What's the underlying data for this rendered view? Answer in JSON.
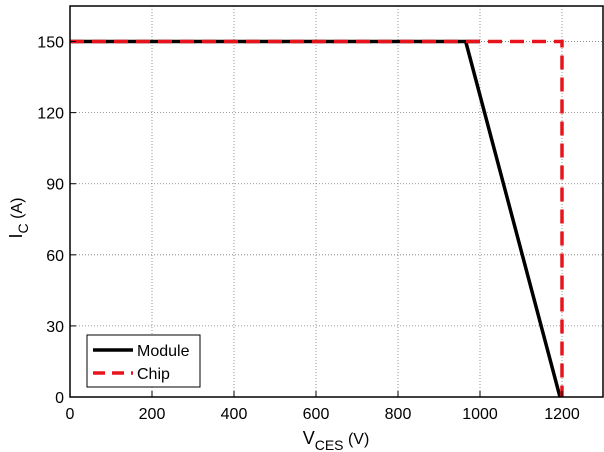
{
  "chart_data": {
    "type": "line",
    "title": "",
    "xlabel": {
      "main": "V",
      "sub": "CES",
      "unit": " (V)"
    },
    "ylabel": {
      "main": "I",
      "sub": "C",
      "unit": " (A)"
    },
    "xlim": [
      0,
      1300
    ],
    "ylim": [
      0,
      165
    ],
    "xticks": [
      0,
      200,
      400,
      600,
      800,
      1000,
      1200
    ],
    "yticks": [
      0,
      30,
      60,
      90,
      120,
      150
    ],
    "grid": true,
    "legend_position": "bottom-left",
    "series": [
      {
        "name": "Module",
        "color": "#000000",
        "style": "solid",
        "points": [
          [
            0,
            150
          ],
          [
            1000,
            150
          ],
          [
            965,
            150
          ],
          [
            1195,
            0
          ]
        ]
      },
      {
        "name": "Chip",
        "color": "#e8141b",
        "style": "dashed",
        "points": [
          [
            0,
            150
          ],
          [
            1200,
            150
          ],
          [
            1200,
            0
          ]
        ]
      }
    ]
  }
}
